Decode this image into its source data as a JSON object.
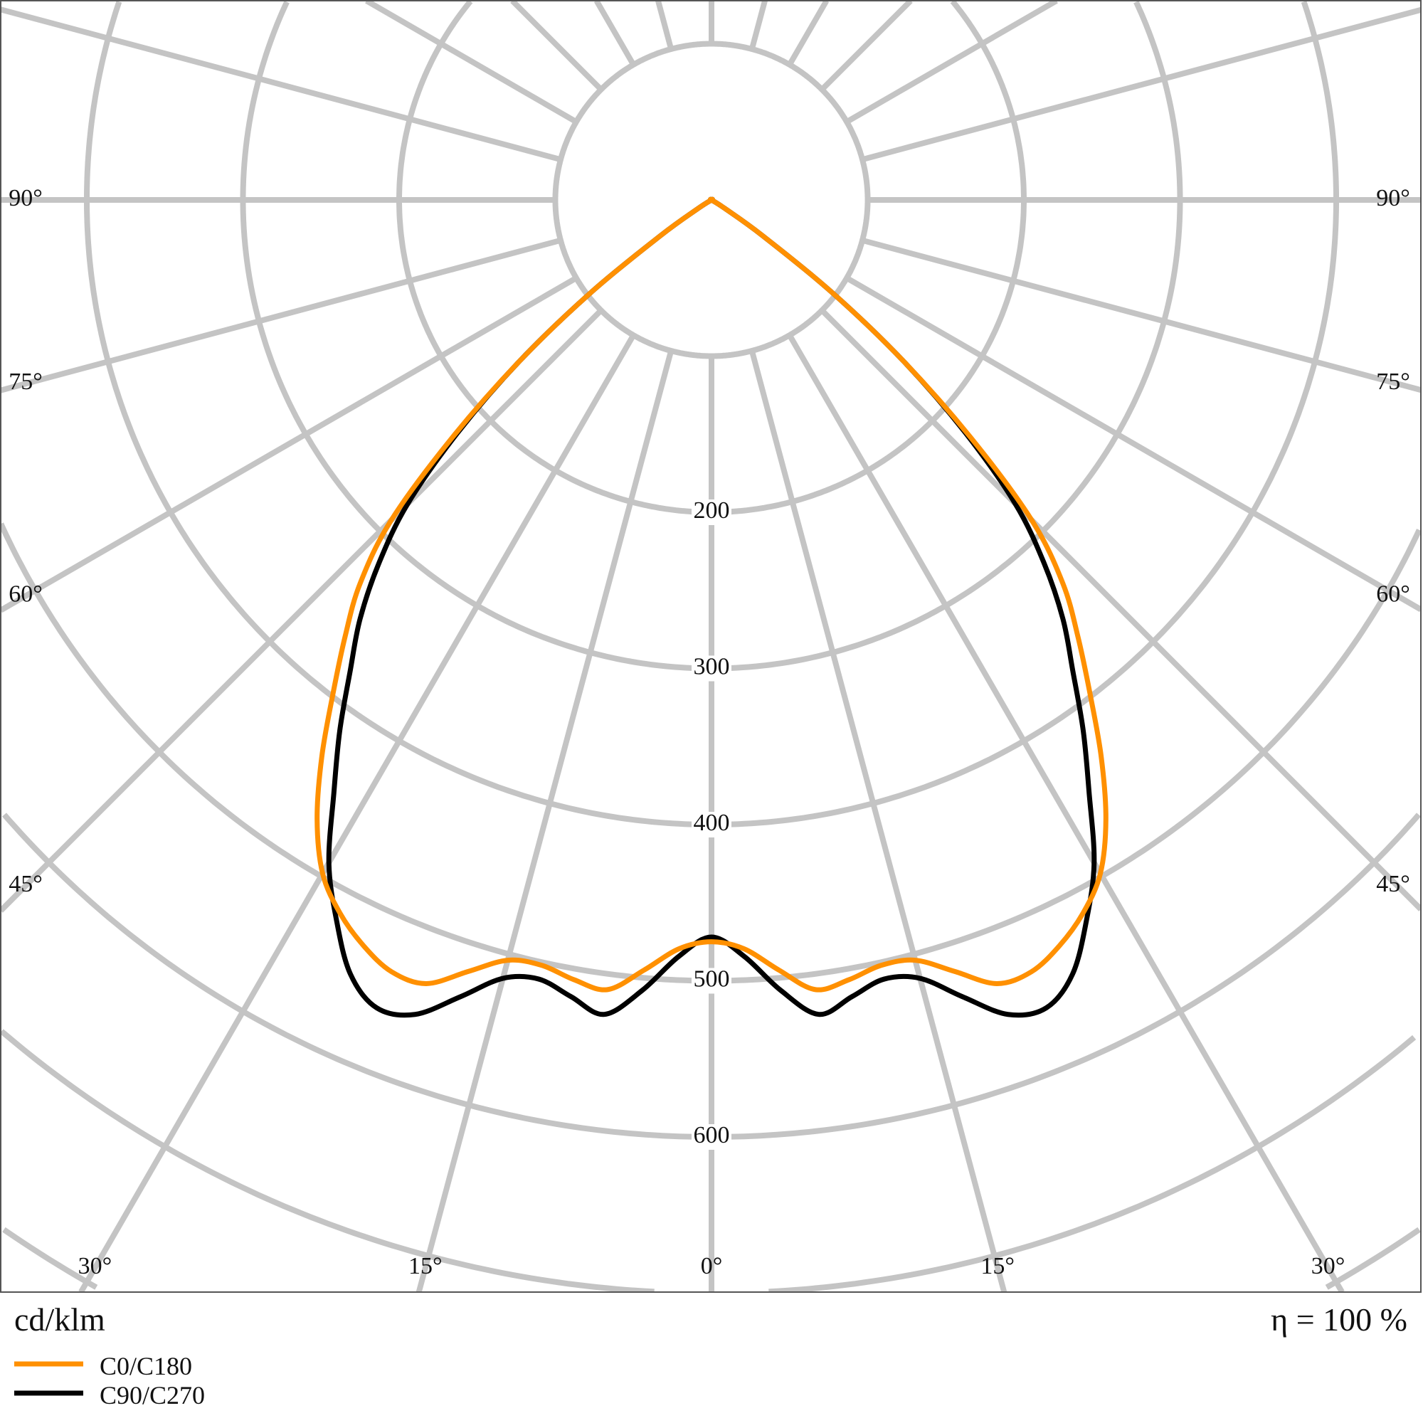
{
  "chart_data": {
    "type": "polar",
    "unit_label": "cd/klm",
    "efficiency_label": "η = 100 %",
    "radial_ticks": [
      100,
      200,
      300,
      400,
      500,
      600,
      700,
      800,
      900,
      1000
    ],
    "radial_tick_labels": [
      "200",
      "300",
      "400",
      "500",
      "600"
    ],
    "radial_labeled_values": [
      200,
      300,
      400,
      500,
      600
    ],
    "angle_step_deg": 15,
    "angle_labels_side": [
      "90°",
      "75°",
      "60°",
      "45°"
    ],
    "angle_labels_side_values": [
      90,
      75,
      60,
      45
    ],
    "angle_labels_bottom": [
      "30°",
      "15°",
      "0°",
      "15°",
      "30°"
    ],
    "angle_labels_bottom_values": [
      -30,
      -15,
      0,
      15,
      30
    ],
    "grid": true,
    "grid_color": "#c4c4c4",
    "gamma_deg": [
      0,
      2.5,
      5,
      7.5,
      10,
      12.5,
      15,
      17.5,
      20,
      22.5,
      25,
      27.5,
      30,
      32.5,
      35,
      37.5,
      40,
      42.5,
      45,
      47.5,
      50,
      52.5,
      55,
      57.5,
      60,
      75,
      90
    ],
    "series": [
      {
        "name": "C0/C180",
        "color": "#ff9000",
        "values": [
          475,
          480,
          495,
          510,
          507,
          502,
          504,
          518,
          534,
          535,
          527,
          515,
          498,
          470,
          435,
          398,
          365,
          333,
          290,
          225,
          160,
          97,
          40,
          10,
          0,
          0,
          0
        ]
      },
      {
        "name": "C90/C270",
        "color": "#000000",
        "values": [
          472,
          485,
          508,
          526,
          518,
          511,
          516,
          535,
          555,
          560,
          547,
          520,
          490,
          450,
          415,
          380,
          350,
          315,
          275,
          220,
          160,
          97,
          40,
          10,
          0,
          0,
          0
        ]
      }
    ],
    "legend_placement": "bottom-left"
  }
}
